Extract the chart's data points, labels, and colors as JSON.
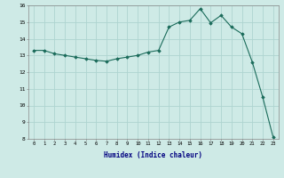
{
  "x": [
    0,
    1,
    2,
    3,
    4,
    5,
    6,
    7,
    8,
    9,
    10,
    11,
    12,
    13,
    14,
    15,
    16,
    17,
    18,
    19,
    20,
    21,
    22,
    23
  ],
  "y": [
    13.3,
    13.3,
    13.1,
    13.0,
    12.9,
    12.8,
    12.7,
    12.65,
    12.8,
    12.9,
    13.0,
    13.2,
    13.3,
    14.7,
    15.0,
    15.1,
    15.8,
    14.95,
    15.4,
    14.7,
    14.3,
    12.6,
    10.5,
    8.1
  ],
  "xlabel": "Humidex (Indice chaleur)",
  "bg_color": "#ceeae6",
  "grid_color": "#aed4d0",
  "line_color": "#1a6b5a",
  "marker_color": "#1a6b5a",
  "ylim": [
    8,
    16
  ],
  "xlim": [
    -0.5,
    23.5
  ],
  "yticks": [
    8,
    9,
    10,
    11,
    12,
    13,
    14,
    15,
    16
  ],
  "xticks": [
    0,
    1,
    2,
    3,
    4,
    5,
    6,
    7,
    8,
    9,
    10,
    11,
    12,
    13,
    14,
    15,
    16,
    17,
    18,
    19,
    20,
    21,
    22,
    23
  ]
}
